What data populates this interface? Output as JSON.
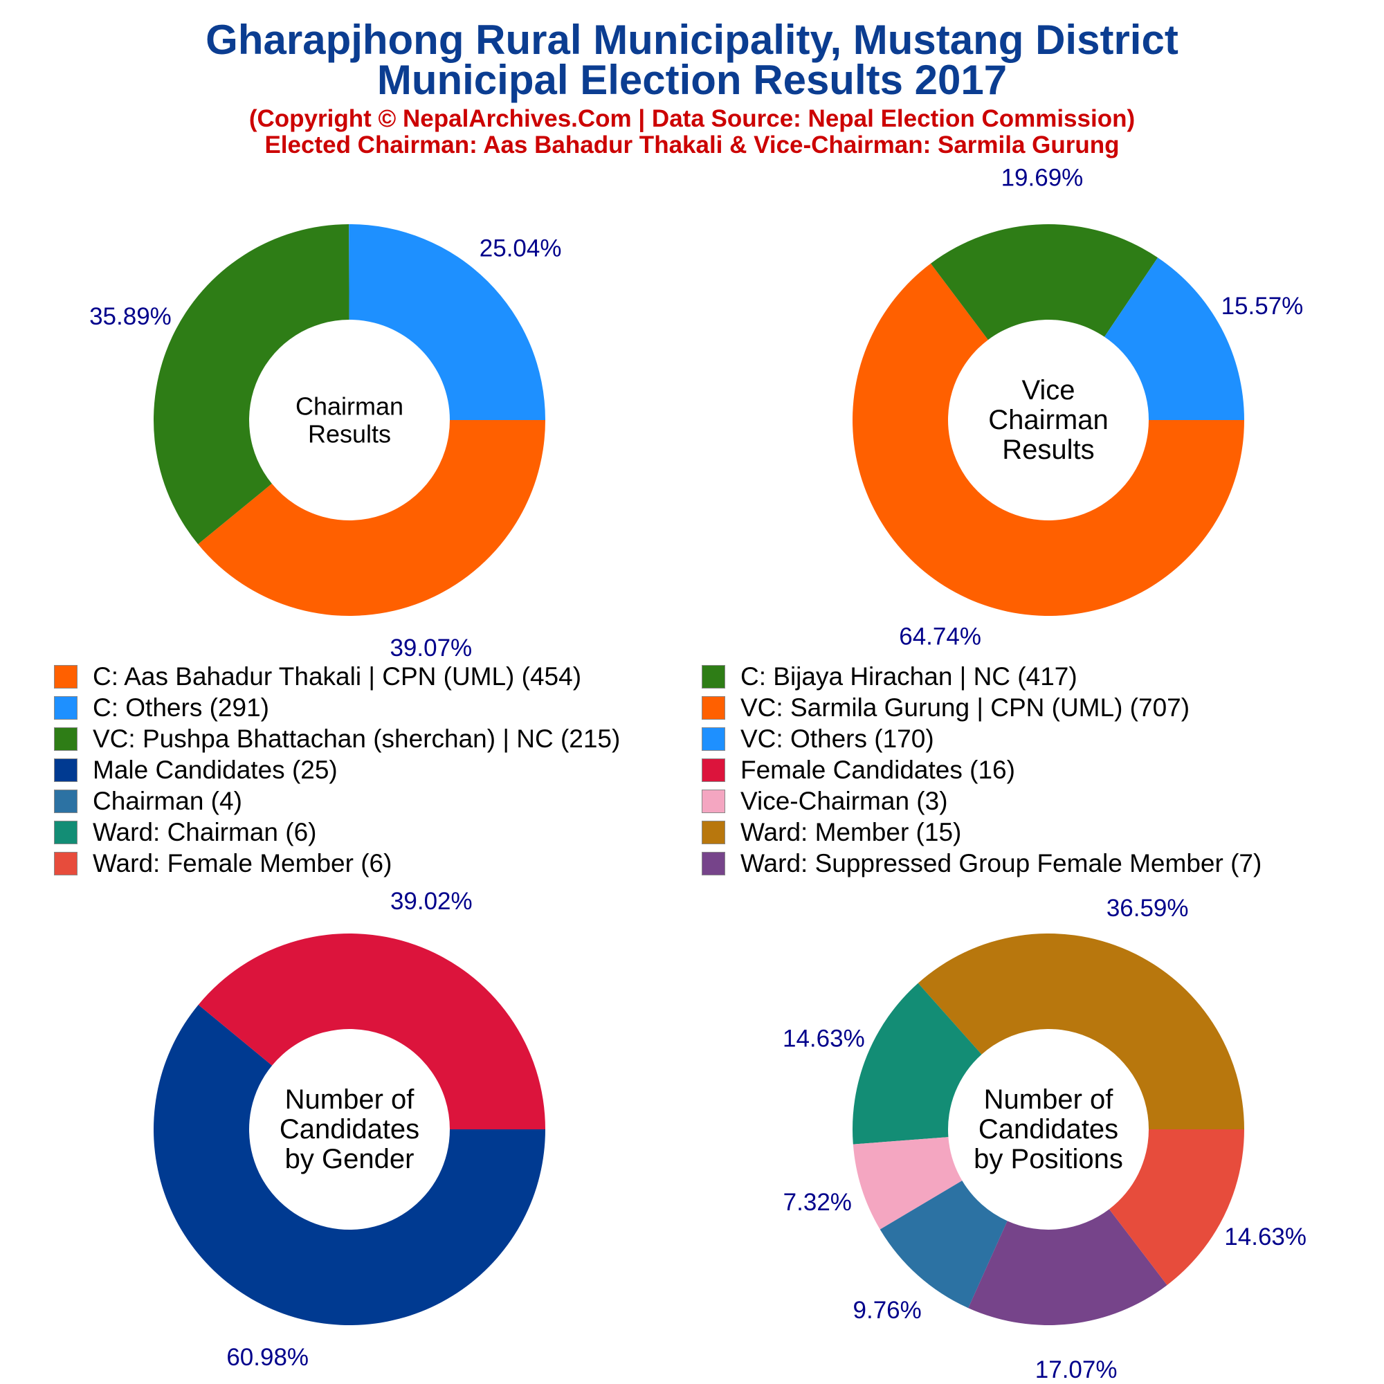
{
  "header": {
    "title_line1": "Gharapjhong Rural Municipality, Mustang District",
    "title_line2": "Municipal Election Results 2017",
    "subtitle_line1": "(Copyright © NepalArchives.Com | Data Source: Nepal Election Commission)",
    "subtitle_line2": "Elected Chairman: Aas Bahadur Thakali & Vice-Chairman: Sarmila Gurung"
  },
  "colors": {
    "title": "#0b3d91",
    "subtitle": "#cc0000",
    "percent_label": "#00008b"
  },
  "legend": {
    "left": [
      {
        "label": "C: Aas Bahadur Thakali | CPN (UML) (454)",
        "color": "#ff6000"
      },
      {
        "label": "C: Others (291)",
        "color": "#1e90ff"
      },
      {
        "label": "VC: Pushpa Bhattachan (sherchan) | NC (215)",
        "color": "#2e7d16"
      },
      {
        "label": "Male Candidates (25)",
        "color": "#003a91"
      },
      {
        "label": "Chairman (4)",
        "color": "#2c72a3"
      },
      {
        "label": "Ward: Chairman (6)",
        "color": "#138d75"
      },
      {
        "label": "Ward: Female Member (6)",
        "color": "#e74c3c"
      }
    ],
    "right": [
      {
        "label": "C: Bijaya Hirachan | NC (417)",
        "color": "#2e7d16"
      },
      {
        "label": "VC: Sarmila Gurung | CPN (UML) (707)",
        "color": "#ff6000"
      },
      {
        "label": "VC: Others (170)",
        "color": "#1e90ff"
      },
      {
        "label": "Female Candidates (16)",
        "color": "#dc143c"
      },
      {
        "label": "Vice-Chairman (3)",
        "color": "#f4a6c1"
      },
      {
        "label": "Ward: Member (15)",
        "color": "#b8770d"
      },
      {
        "label": "Ward: Suppressed Group Female Member (7)",
        "color": "#76448a"
      }
    ]
  },
  "chart_data": [
    {
      "type": "pie",
      "title": "Chairman Results",
      "center_label": [
        "Chairman",
        "Results"
      ],
      "slices": [
        {
          "name": "C: Aas Bahadur Thakali | CPN (UML)",
          "value": 454,
          "label": "39.07%",
          "color": "#ff6000"
        },
        {
          "name": "C: Bijaya Hirachan | NC",
          "value": 417,
          "label": "35.89%",
          "color": "#2e7d16"
        },
        {
          "name": "C: Others",
          "value": 291,
          "label": "25.04%",
          "color": "#1e90ff"
        }
      ]
    },
    {
      "type": "pie",
      "title": "Vice Chairman Results",
      "center_label": [
        "Vice",
        "Chairman",
        "Results"
      ],
      "slices": [
        {
          "name": "VC: Sarmila Gurung | CPN (UML)",
          "value": 707,
          "label": "64.74%",
          "color": "#ff6000"
        },
        {
          "name": "VC: Pushpa Bhattachan (sherchan) | NC",
          "value": 215,
          "label": "19.69%",
          "color": "#2e7d16"
        },
        {
          "name": "VC: Others",
          "value": 170,
          "label": "15.57%",
          "color": "#1e90ff"
        }
      ]
    },
    {
      "type": "pie",
      "title": "Number of Candidates by Gender",
      "center_label": [
        "Number of",
        "Candidates",
        "by Gender"
      ],
      "slices": [
        {
          "name": "Male Candidates",
          "value": 25,
          "label": "60.98%",
          "color": "#003a91"
        },
        {
          "name": "Female Candidates",
          "value": 16,
          "label": "39.02%",
          "color": "#dc143c"
        }
      ]
    },
    {
      "type": "pie",
      "title": "Number of Candidates by Positions",
      "center_label": [
        "Number of",
        "Candidates",
        "by Positions"
      ],
      "slices": [
        {
          "name": "Ward: Member",
          "value": 15,
          "label": "36.59%",
          "color": "#b8770d"
        },
        {
          "name": "Ward: Chairman",
          "value": 6,
          "label": "14.63%",
          "color": "#138d75"
        },
        {
          "name": "Vice-Chairman",
          "value": 3,
          "label": "7.32%",
          "color": "#f4a6c1"
        },
        {
          "name": "Chairman",
          "value": 4,
          "label": "9.76%",
          "color": "#2c72a3"
        },
        {
          "name": "Ward: Suppressed Group Female Member",
          "value": 7,
          "label": "17.07%",
          "color": "#76448a"
        },
        {
          "name": "Ward: Female Member",
          "value": 6,
          "label": "14.63%",
          "color": "#e74c3c"
        }
      ]
    }
  ]
}
